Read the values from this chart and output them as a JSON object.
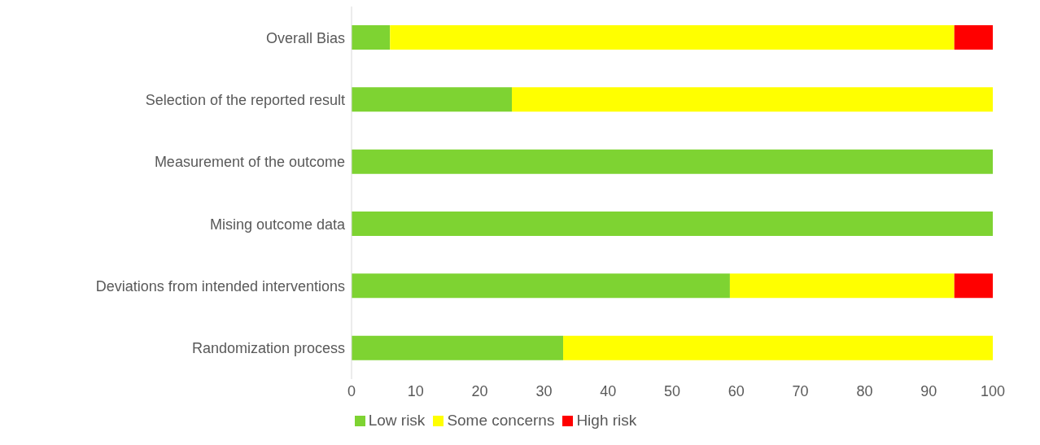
{
  "chart_data": {
    "type": "bar",
    "orientation": "horizontal",
    "stacked": true,
    "categories": [
      "Overall Bias",
      "Selection of the reported result",
      "Measurement of the outcome",
      "Mising outcome data",
      "Deviations from intended interventions",
      "Randomization process"
    ],
    "series": [
      {
        "name": "Low risk",
        "color": "#7ed332",
        "values": [
          6,
          25,
          100,
          100,
          59,
          33
        ]
      },
      {
        "name": "Some concerns",
        "color": "#ffff00",
        "values": [
          88,
          75,
          0,
          0,
          35,
          67
        ]
      },
      {
        "name": "High risk",
        "color": "#ff0000",
        "values": [
          6,
          0,
          0,
          0,
          6,
          0
        ]
      }
    ],
    "xlim": [
      0,
      100
    ],
    "xticks": [
      0,
      10,
      20,
      30,
      40,
      50,
      60,
      70,
      80,
      90,
      100
    ],
    "grid": false,
    "legend": "bottom"
  }
}
